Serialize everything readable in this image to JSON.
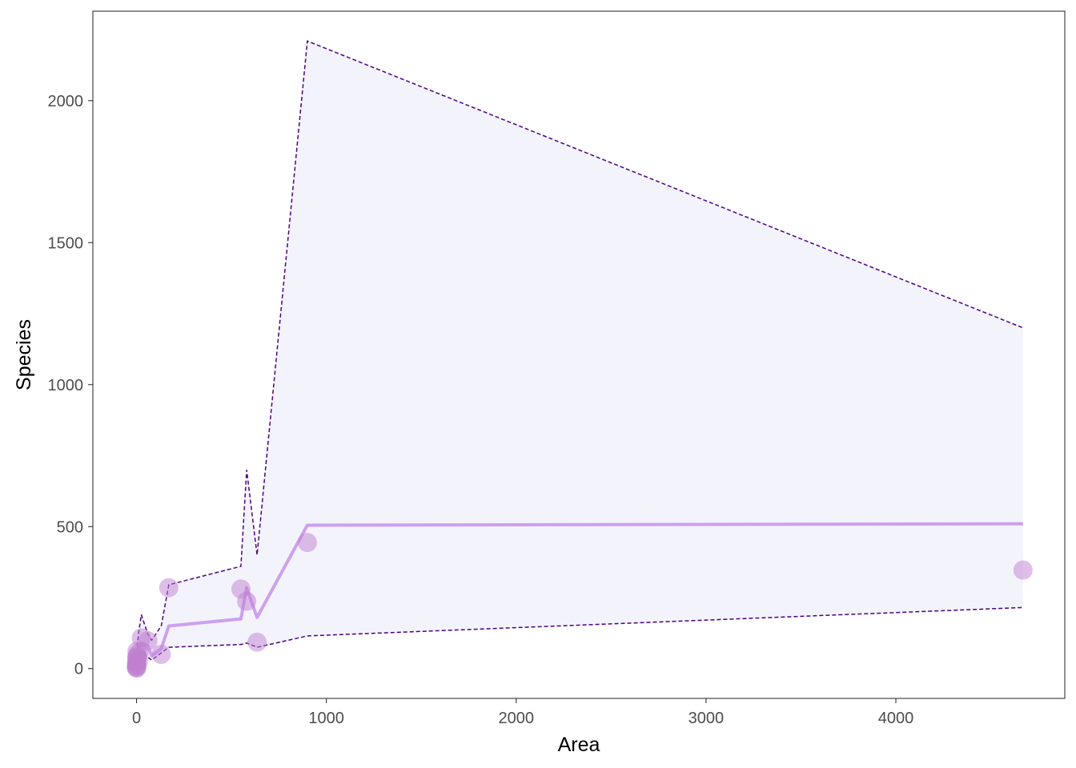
{
  "chart_data": {
    "type": "scatter",
    "title": "",
    "xlabel": "Area",
    "ylabel": "Species",
    "xlim": [
      -230,
      4890
    ],
    "ylim": [
      -105,
      2315
    ],
    "grid": false,
    "x_ticks": [
      0,
      1000,
      2000,
      3000,
      4000
    ],
    "y_ticks": [
      0,
      500,
      1000,
      1500,
      2000
    ],
    "x_tick_labels": [
      "0",
      "1000",
      "2000",
      "3000",
      "4000"
    ],
    "y_tick_labels": [
      "0",
      "500",
      "1000",
      "1500",
      "2000"
    ],
    "points": [
      {
        "x": 0.01,
        "y": 7
      },
      {
        "x": 0.05,
        "y": 3
      },
      {
        "x": 0.1,
        "y": 10
      },
      {
        "x": 0.2,
        "y": 18
      },
      {
        "x": 0.3,
        "y": 23
      },
      {
        "x": 0.5,
        "y": 2
      },
      {
        "x": 1,
        "y": 44
      },
      {
        "x": 2,
        "y": 36
      },
      {
        "x": 3,
        "y": 62
      },
      {
        "x": 5,
        "y": 42
      },
      {
        "x": 10,
        "y": 25
      },
      {
        "x": 14,
        "y": 56
      },
      {
        "x": 25,
        "y": 108
      },
      {
        "x": 60,
        "y": 98
      },
      {
        "x": 130,
        "y": 50
      },
      {
        "x": 170,
        "y": 285
      },
      {
        "x": 550,
        "y": 280
      },
      {
        "x": 580,
        "y": 237
      },
      {
        "x": 635,
        "y": 93
      },
      {
        "x": 900,
        "y": 444
      },
      {
        "x": 4670,
        "y": 347
      }
    ],
    "fit_series": {
      "x": [
        0,
        10,
        25,
        60,
        80,
        130,
        170,
        550,
        580,
        635,
        900,
        4670
      ],
      "fit": [
        30,
        70,
        90,
        80,
        45,
        70,
        150,
        175,
        285,
        180,
        505,
        510
      ],
      "lower": [
        5,
        35,
        60,
        40,
        30,
        55,
        75,
        85,
        90,
        75,
        115,
        215
      ],
      "upper": [
        55,
        120,
        190,
        120,
        100,
        150,
        295,
        360,
        700,
        400,
        2210,
        1200
      ]
    },
    "colors": {
      "points": "#c080d0",
      "fit_line": "#cca0f0",
      "band_fill": "#f3f3fc",
      "band_edges": "#4b0082",
      "panel_border": "#333333"
    }
  }
}
